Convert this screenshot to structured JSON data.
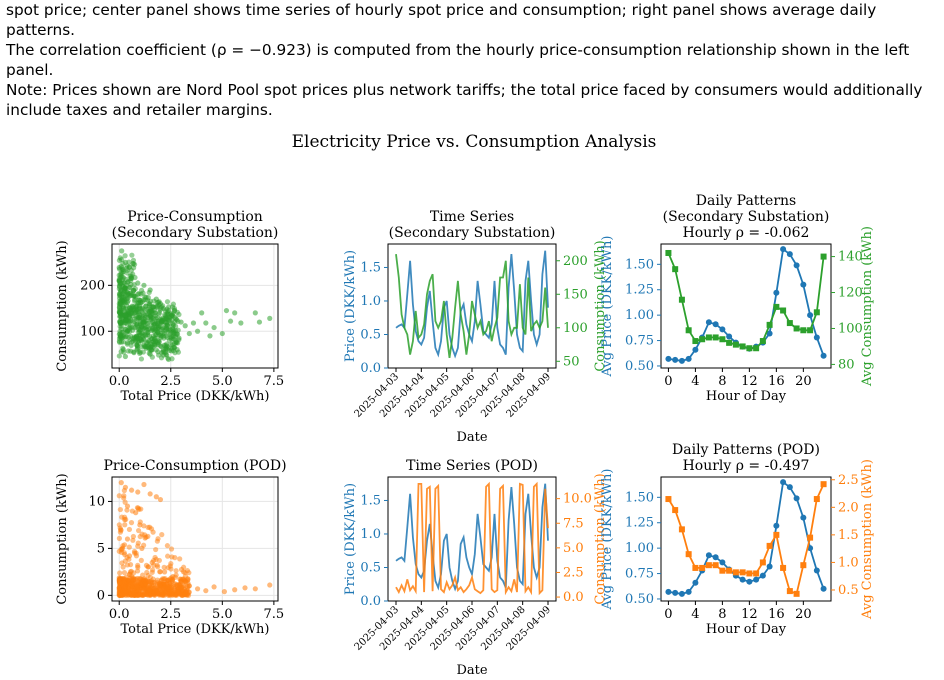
{
  "caption": {
    "line1": "spot price; center panel shows time series of hourly spot price and consumption; right panel shows average daily patterns.",
    "line2": "The correlation coefficient (ρ = −0.923) is computed from the hourly price-consumption relationship shown in the left panel.",
    "line3": "Note: Prices shown are Nord Pool spot prices plus network tariffs; the total price faced by consumers would additionally",
    "line4": "include taxes and retailer margins."
  },
  "figure_title": "Electricity Price vs. Consumption Analysis",
  "colors": {
    "price": "#1f77b4",
    "secondary": "#2ca02c",
    "pod": "#ff7f0e",
    "grid": "#e5e5e5"
  },
  "chart_data": [
    {
      "id": "scatter_secondary",
      "type": "scatter",
      "title": "Price-Consumption\n(Secondary Substation)",
      "xlabel": "Total Price (DKK/kWh)",
      "ylabel": "Consumption (kWh)",
      "xlim": [
        -0.35,
        7.7
      ],
      "ylim": [
        20,
        290
      ],
      "xticks": [
        0.0,
        2.5,
        5.0,
        7.5
      ],
      "xticklabels": [
        "0.0",
        "2.5",
        "5.0",
        "7.5"
      ],
      "yticks": [
        100,
        200
      ],
      "yticklabels": [
        "100",
        "200"
      ],
      "color": "#2ca02c",
      "grid": true,
      "points": [
        [
          0.12,
          275
        ],
        [
          0.3,
          250
        ],
        [
          0.5,
          240
        ],
        [
          0.2,
          230
        ],
        [
          0.6,
          215
        ],
        [
          0.9,
          205
        ],
        [
          1.2,
          200
        ],
        [
          1.5,
          190
        ],
        [
          0.4,
          185
        ],
        [
          0.8,
          175
        ],
        [
          1.8,
          170
        ],
        [
          2.0,
          160
        ],
        [
          1.3,
          155
        ],
        [
          0.2,
          150
        ],
        [
          2.4,
          145
        ],
        [
          0.6,
          140
        ],
        [
          1.0,
          135
        ],
        [
          1.6,
          130
        ],
        [
          2.1,
          128
        ],
        [
          2.8,
          125
        ],
        [
          3.0,
          120
        ],
        [
          0.3,
          118
        ],
        [
          1.1,
          112
        ],
        [
          1.9,
          108
        ],
        [
          2.6,
          105
        ],
        [
          3.2,
          112
        ],
        [
          3.6,
          118
        ],
        [
          0.5,
          100
        ],
        [
          1.4,
          98
        ],
        [
          2.2,
          95
        ],
        [
          0.1,
          90
        ],
        [
          0.9,
          85
        ],
        [
          1.7,
          82
        ],
        [
          0.4,
          75
        ],
        [
          1.2,
          70
        ],
        [
          2.0,
          68
        ],
        [
          0.2,
          60
        ],
        [
          0.7,
          55
        ],
        [
          1.5,
          50
        ],
        [
          0.3,
          45
        ],
        [
          2.9,
          85
        ],
        [
          3.4,
          95
        ],
        [
          4.2,
          118
        ],
        [
          4.6,
          108
        ],
        [
          5.0,
          95
        ],
        [
          5.2,
          145
        ],
        [
          5.6,
          140
        ],
        [
          5.4,
          122
        ],
        [
          5.9,
          118
        ],
        [
          6.6,
          140
        ],
        [
          6.8,
          120
        ],
        [
          7.3,
          128
        ],
        [
          4.0,
          140
        ],
        [
          3.8,
          100
        ],
        [
          4.4,
          90
        ]
      ]
    },
    {
      "id": "ts_secondary",
      "type": "line",
      "title": "Time Series\n(Secondary Substation)",
      "xlabel": "Date",
      "ylabel": "Price (DKK/kWh)",
      "y2label": "Consumption (kWh)",
      "x_ticklabels": [
        "2025-04-03",
        "2025-04-04",
        "2025-04-05",
        "2025-04-06",
        "2025-04-07",
        "2025-04-08",
        "2025-04-09"
      ],
      "ylim": [
        0,
        1.85
      ],
      "yticks": [
        0.0,
        0.5,
        1.0,
        1.5
      ],
      "yticklabels": [
        "0.0",
        "0.5",
        "1.0",
        "1.5"
      ],
      "y2lim": [
        40,
        225
      ],
      "y2ticks": [
        50,
        100,
        150,
        200
      ],
      "y2ticklabels": [
        "50",
        "100",
        "150",
        "200"
      ],
      "series": [
        {
          "axis": "left",
          "color": "#1f77b4",
          "values": [
            0.6,
            0.63,
            0.65,
            0.6,
            1.1,
            1.6,
            0.95,
            0.55,
            0.4,
            0.35,
            0.45,
            0.9,
            1.15,
            0.7,
            0.3,
            0.2,
            0.4,
            0.9,
            1.0,
            0.5,
            0.3,
            0.18,
            0.3,
            0.85,
            0.95,
            0.65,
            0.5,
            0.4,
            0.7,
            1.3,
            0.95,
            0.55,
            0.5,
            0.45,
            0.65,
            1.3,
            0.6,
            0.35,
            0.3,
            0.2,
            1.2,
            1.7,
            1.15,
            0.5,
            0.3,
            0.25,
            1.3,
            1.6,
            1.0,
            0.5,
            0.35,
            0.5,
            1.4,
            1.75,
            0.9
          ]
        },
        {
          "axis": "right",
          "color": "#2ca02c",
          "values": [
            210,
            175,
            120,
            100,
            90,
            60,
            80,
            125,
            85,
            90,
            105,
            150,
            170,
            180,
            110,
            100,
            110,
            140,
            90,
            55,
            85,
            130,
            170,
            120,
            95,
            60,
            90,
            140,
            120,
            100,
            110,
            90,
            95,
            110,
            80,
            100,
            115,
            175,
            175,
            200,
            110,
            90,
            100,
            100,
            165,
            100,
            90,
            175,
            95,
            105,
            110,
            100,
            110,
            160,
            100
          ]
        }
      ]
    },
    {
      "id": "daily_secondary",
      "type": "line",
      "title": "Daily Patterns\n(Secondary Substation)\nHourly ρ = -0.062",
      "xlabel": "Hour of Day",
      "ylabel": "Avg Price (DKK/kWh)",
      "y2label": "Avg Consumption (kWh)",
      "x": [
        0,
        1,
        2,
        3,
        4,
        5,
        6,
        7,
        8,
        9,
        10,
        11,
        12,
        13,
        14,
        15,
        16,
        17,
        18,
        19,
        20,
        21,
        22,
        23
      ],
      "xlim": [
        -1.1,
        24.1
      ],
      "xticks": [
        0,
        4,
        8,
        12,
        16,
        20
      ],
      "xticklabels": [
        "0",
        "4",
        "8",
        "12",
        "16",
        "20"
      ],
      "ylim": [
        0.48,
        1.7
      ],
      "yticks": [
        0.5,
        0.75,
        1.0,
        1.25,
        1.5
      ],
      "yticklabels": [
        "0.50",
        "0.75",
        "1.00",
        "1.25",
        "1.50"
      ],
      "y2lim": [
        78,
        147
      ],
      "y2ticks": [
        80,
        100,
        120,
        140
      ],
      "y2ticklabels": [
        "80",
        "100",
        "120",
        "140"
      ],
      "series": [
        {
          "name": "",
          "axis": "left",
          "color": "#1f77b4",
          "marker": "circle",
          "values": [
            0.57,
            0.56,
            0.55,
            0.57,
            0.66,
            0.78,
            0.93,
            0.91,
            0.86,
            0.79,
            0.73,
            0.69,
            0.67,
            0.69,
            0.73,
            0.82,
            1.22,
            1.65,
            1.6,
            1.49,
            1.3,
            1.0,
            0.78,
            0.6
          ]
        },
        {
          "name": "",
          "axis": "right",
          "color": "#2ca02c",
          "marker": "square",
          "values": [
            142,
            133,
            116,
            99,
            93,
            94,
            95,
            95,
            94,
            92,
            91,
            90,
            89,
            89,
            93,
            102,
            112,
            110,
            103,
            100,
            99,
            99,
            109,
            140
          ]
        }
      ]
    },
    {
      "id": "scatter_pod",
      "type": "scatter",
      "title": "Price-Consumption (POD)",
      "xlabel": "Total Price (DKK/kWh)",
      "ylabel": "Consumption (kWh)",
      "xlim": [
        -0.35,
        7.7
      ],
      "ylim": [
        -0.6,
        12.6
      ],
      "xticks": [
        0.0,
        2.5,
        5.0,
        7.5
      ],
      "xticklabels": [
        "0.0",
        "2.5",
        "5.0",
        "7.5"
      ],
      "yticks": [
        0,
        5,
        10
      ],
      "yticklabels": [
        "0",
        "5",
        "10"
      ],
      "color": "#ff7f0e",
      "grid": true,
      "points": [
        [
          0.1,
          12
        ],
        [
          0.3,
          11.5
        ],
        [
          0.6,
          11.2
        ],
        [
          0.9,
          11
        ],
        [
          1.2,
          11.8
        ],
        [
          1.5,
          10.8
        ],
        [
          1.8,
          10.5
        ],
        [
          2.0,
          10.2
        ],
        [
          0.4,
          9.5
        ],
        [
          0.8,
          8.8
        ],
        [
          1.0,
          7.5
        ],
        [
          1.3,
          6.2
        ],
        [
          1.1,
          5.0
        ],
        [
          0.5,
          4.2
        ],
        [
          1.6,
          3.5
        ],
        [
          0.9,
          3.0
        ],
        [
          2.2,
          2.5
        ],
        [
          2.6,
          2.0
        ],
        [
          3.0,
          1.5
        ],
        [
          0.2,
          1.0
        ],
        [
          1.4,
          0.8
        ],
        [
          2.8,
          0.6
        ],
        [
          3.4,
          1.0
        ],
        [
          3.8,
          0.7
        ],
        [
          4.2,
          0.5
        ],
        [
          4.6,
          0.9
        ],
        [
          5.1,
          0.4
        ],
        [
          5.6,
          0.6
        ],
        [
          6.1,
          0.8
        ],
        [
          6.6,
          0.7
        ],
        [
          7.3,
          1.1
        ],
        [
          0.7,
          0.3
        ],
        [
          1.9,
          0.2
        ],
        [
          2.4,
          0.4
        ],
        [
          3.2,
          0.3
        ],
        [
          0.3,
          0.5
        ],
        [
          1.0,
          0.1
        ],
        [
          0.6,
          2.0
        ],
        [
          1.2,
          1.5
        ],
        [
          0.4,
          6.0
        ]
      ]
    },
    {
      "id": "ts_pod",
      "type": "line",
      "title": "Time Series (POD)",
      "xlabel": "Date",
      "ylabel": "Price (DKK/kWh)",
      "y2label": "Consumption (kWh)",
      "x_ticklabels": [
        "2025-04-03",
        "2025-04-04",
        "2025-04-05",
        "2025-04-06",
        "2025-04-07",
        "2025-04-08",
        "2025-04-09"
      ],
      "ylim": [
        0,
        1.85
      ],
      "yticks": [
        0.0,
        0.5,
        1.0,
        1.5
      ],
      "yticklabels": [
        "0.0",
        "0.5",
        "1.0",
        "1.5"
      ],
      "y2lim": [
        -0.4,
        12.2
      ],
      "y2ticks": [
        0.0,
        2.5,
        5.0,
        7.5,
        10.0
      ],
      "y2ticklabels": [
        "0.0",
        "2.5",
        "5.0",
        "7.5",
        "10.0"
      ],
      "series": [
        {
          "axis": "left",
          "color": "#1f77b4",
          "values": [
            0.6,
            0.63,
            0.65,
            0.6,
            1.1,
            1.6,
            0.95,
            0.55,
            0.4,
            0.35,
            0.45,
            0.9,
            1.15,
            0.7,
            0.3,
            0.2,
            0.4,
            0.9,
            1.0,
            0.5,
            0.3,
            0.18,
            0.3,
            0.85,
            0.95,
            0.65,
            0.5,
            0.4,
            0.7,
            1.3,
            0.95,
            0.55,
            0.5,
            0.45,
            0.65,
            1.3,
            0.6,
            0.35,
            0.3,
            0.2,
            1.2,
            1.7,
            1.15,
            0.5,
            0.3,
            0.25,
            1.3,
            1.6,
            1.0,
            0.5,
            0.35,
            0.5,
            1.4,
            1.75,
            0.9
          ]
        },
        {
          "axis": "right",
          "color": "#ff7f0e",
          "values": [
            1.0,
            0.5,
            1.2,
            0.6,
            1.8,
            0.7,
            1.1,
            0.6,
            11.5,
            11.5,
            0.5,
            11.0,
            11.2,
            0.6,
            11.0,
            11.3,
            0.8,
            0.5,
            1.5,
            0.8,
            1.2,
            2.0,
            0.7,
            1.0,
            0.5,
            0.8,
            1.2,
            2.0,
            0.8,
            0.6,
            0.4,
            0.7,
            11.2,
            11.5,
            0.8,
            0.5,
            0.7,
            11.0,
            11.3,
            0.5,
            1.0,
            0.6,
            1.8,
            0.5,
            11.5,
            11.4,
            0.6,
            1.0,
            0.5,
            11.2,
            11.5,
            0.4,
            0.7,
            11.0,
            7.0
          ]
        }
      ]
    },
    {
      "id": "daily_pod",
      "type": "line",
      "title": "Daily Patterns (POD)\nHourly ρ = -0.497",
      "xlabel": "Hour of Day",
      "ylabel": "Avg Price (DKK/kWh)",
      "y2label": "Avg Consumption (kWh)",
      "x": [
        0,
        1,
        2,
        3,
        4,
        5,
        6,
        7,
        8,
        9,
        10,
        11,
        12,
        13,
        14,
        15,
        16,
        17,
        18,
        19,
        20,
        21,
        22,
        23
      ],
      "xlim": [
        -1.1,
        24.1
      ],
      "xticks": [
        0,
        4,
        8,
        12,
        16,
        20
      ],
      "xticklabels": [
        "0",
        "4",
        "8",
        "12",
        "16",
        "20"
      ],
      "ylim": [
        0.48,
        1.7
      ],
      "yticks": [
        0.5,
        0.75,
        1.0,
        1.25,
        1.5
      ],
      "yticklabels": [
        "0.50",
        "0.75",
        "1.00",
        "1.25",
        "1.50"
      ],
      "y2lim": [
        0.3,
        2.55
      ],
      "y2ticks": [
        0.5,
        1.0,
        1.5,
        2.0,
        2.5
      ],
      "y2ticklabels": [
        "0.5",
        "1.0",
        "1.5",
        "2.0",
        "2.5"
      ],
      "series": [
        {
          "name": "",
          "axis": "left",
          "color": "#1f77b4",
          "marker": "circle",
          "values": [
            0.57,
            0.56,
            0.55,
            0.57,
            0.66,
            0.78,
            0.93,
            0.91,
            0.86,
            0.79,
            0.73,
            0.69,
            0.67,
            0.69,
            0.73,
            0.82,
            1.22,
            1.65,
            1.6,
            1.49,
            1.3,
            1.0,
            0.78,
            0.6
          ]
        },
        {
          "name": "",
          "axis": "right",
          "color": "#ff7f0e",
          "marker": "square",
          "values": [
            2.15,
            1.95,
            1.6,
            1.15,
            0.9,
            0.9,
            0.95,
            0.95,
            0.85,
            0.85,
            0.82,
            0.82,
            0.8,
            0.8,
            1.0,
            1.3,
            1.5,
            0.9,
            0.48,
            0.43,
            0.95,
            1.45,
            2.15,
            2.42
          ]
        }
      ]
    }
  ]
}
